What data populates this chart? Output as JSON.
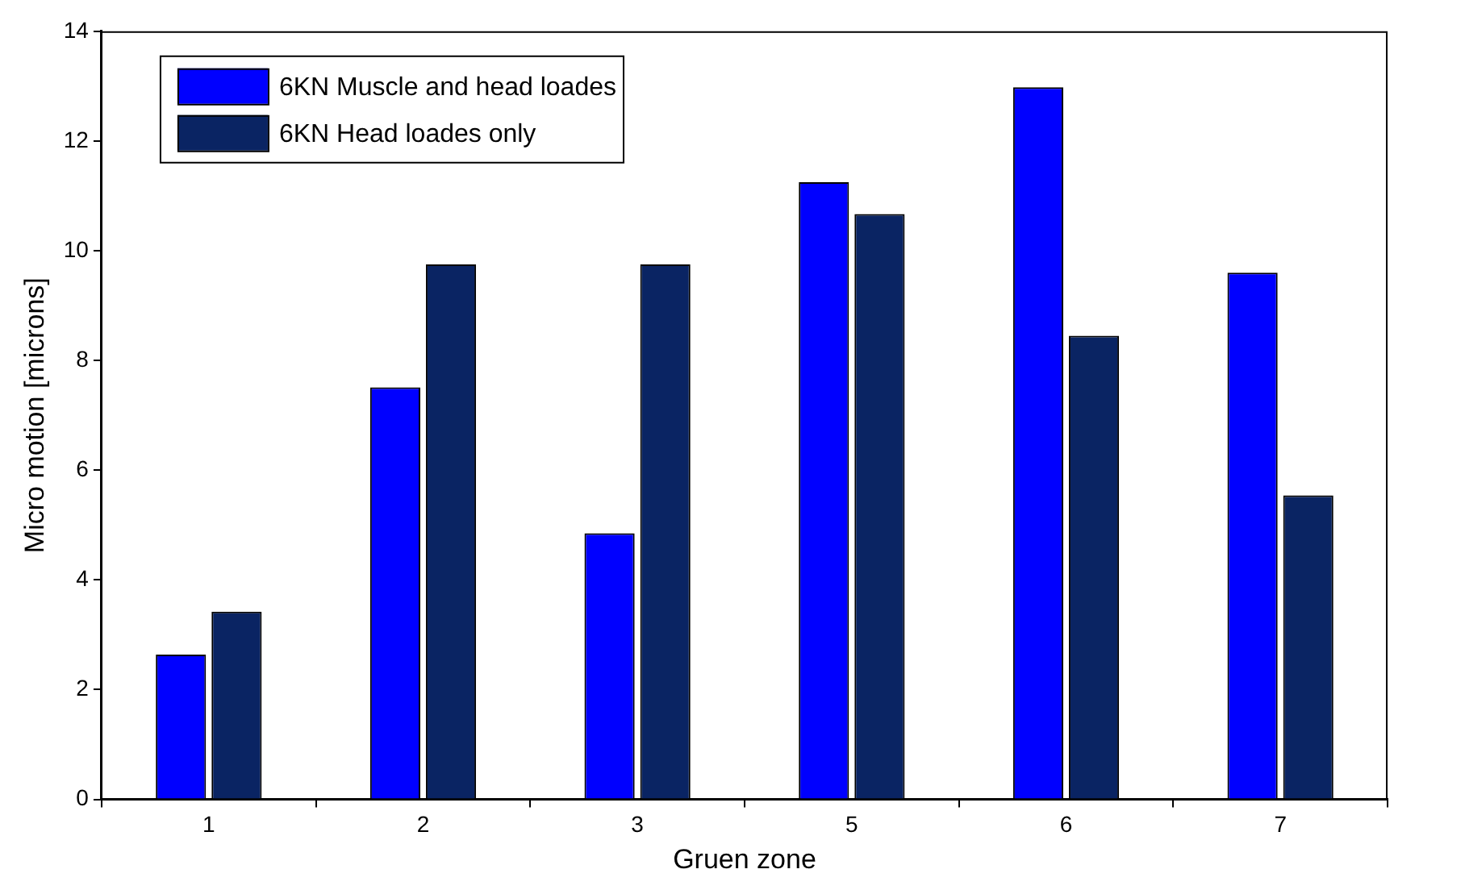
{
  "chart_data": {
    "type": "bar",
    "xlabel": "Gruen zone",
    "ylabel": "Micro motion [microns]",
    "categories": [
      "1",
      "2",
      "3",
      "5",
      "6",
      "7"
    ],
    "series": [
      {
        "name": "6KN Muscle and head loades",
        "color": "#0000ff",
        "values": [
          2.64,
          7.51,
          4.85,
          11.25,
          12.98,
          9.6
        ]
      },
      {
        "name": "6KN Head loades only",
        "color": "#0a2463",
        "values": [
          3.42,
          9.75,
          9.75,
          10.67,
          8.45,
          5.54
        ]
      }
    ],
    "ylim": [
      0,
      14
    ],
    "yticks": [
      0,
      2,
      4,
      6,
      8,
      10,
      12,
      14
    ],
    "grid": false,
    "legend": "top left"
  }
}
